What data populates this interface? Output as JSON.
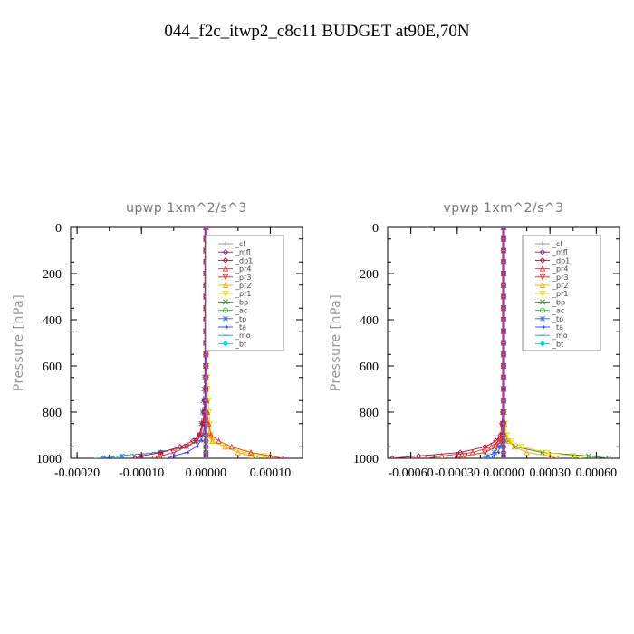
{
  "figure": {
    "title": "044_f2c_itwp2_c8c11  BUDGET at90E,70N"
  },
  "chart_data": [
    {
      "type": "line",
      "title": "upwp   1xm^2/s^3",
      "ylabel": "Pressure [hPa]",
      "xlabel": "",
      "xlim": [
        -0.00021,
        0.00015
      ],
      "ylim": [
        1000,
        0
      ],
      "xticks": [
        -0.0002,
        -0.0001,
        0.0,
        0.0001
      ],
      "xtick_labels": [
        "-0.00020",
        "-0.00010",
        "0.00000",
        "0.00010"
      ],
      "yticks": [
        0,
        200,
        400,
        600,
        800,
        1000
      ],
      "ytick_labels": [
        "0",
        "200",
        "400",
        "600",
        "800",
        "1000"
      ],
      "legend_position": "top-right",
      "levels": [
        0,
        50,
        100,
        150,
        200,
        250,
        300,
        350,
        400,
        450,
        500,
        550,
        600,
        650,
        700,
        750,
        800,
        850,
        900,
        925,
        950,
        975,
        990,
        1000
      ],
      "series": [
        {
          "name": "_cl",
          "color": "#9a7fb0",
          "marker": "cross",
          "values": [
            0,
            0,
            0,
            0,
            0,
            0,
            0,
            0,
            0,
            0,
            0,
            0,
            0,
            0,
            0,
            0,
            0,
            0,
            0,
            0,
            0,
            0,
            0,
            0
          ]
        },
        {
          "name": "_mfl",
          "color": "#8b1a8b",
          "marker": "diamond",
          "values": [
            0,
            0,
            0,
            0,
            0,
            0,
            0,
            0,
            0,
            0,
            0,
            0,
            0,
            0,
            0,
            0,
            0,
            0,
            0,
            0,
            0,
            0,
            0,
            0
          ]
        },
        {
          "name": "_dp1",
          "color": "#b0103a",
          "marker": "diamond",
          "values": [
            0,
            0,
            0,
            0,
            0,
            0,
            0,
            0,
            0,
            0,
            0,
            0,
            0,
            0,
            0,
            -2e-06,
            -3e-06,
            -5e-06,
            -1e-05,
            -2e-05,
            -4e-05,
            -7e-05,
            -0.0001,
            -0.00011
          ]
        },
        {
          "name": "_pr4",
          "color": "#e8402a",
          "marker": "triangle-up",
          "values": [
            0,
            0,
            0,
            0,
            0,
            0,
            0,
            0,
            0,
            0,
            0,
            0,
            0,
            0,
            0,
            1e-06,
            2e-06,
            4e-06,
            8e-06,
            2e-05,
            4e-05,
            7e-05,
            0.0001,
            0.00012
          ]
        },
        {
          "name": "_pr3",
          "color": "#ff1a1a",
          "marker": "triangle-down",
          "values": [
            0,
            0,
            0,
            0,
            0,
            0,
            0,
            0,
            0,
            0,
            0,
            0,
            0,
            0,
            0,
            -1e-06,
            -2e-06,
            -4e-06,
            -8e-06,
            -1.5e-05,
            -3e-05,
            -5e-05,
            -7e-05,
            -8e-05
          ]
        },
        {
          "name": "_pr2",
          "color": "#ffa500",
          "marker": "triangle-up",
          "values": [
            0,
            0,
            0,
            0,
            0,
            0,
            0,
            0,
            0,
            0,
            0,
            0,
            0,
            0,
            0,
            1e-06,
            2e-06,
            3e-06,
            5e-06,
            1e-05,
            3e-05,
            5e-05,
            7e-05,
            8e-05
          ]
        },
        {
          "name": "_pr1",
          "color": "#e8e000",
          "marker": "triangle-down",
          "values": [
            0,
            0,
            0,
            0,
            0,
            0,
            0,
            0,
            0,
            0,
            0,
            0,
            1e-06,
            2e-06,
            3e-06,
            4e-06,
            5e-06,
            6e-06,
            8e-06,
            1e-05,
            3e-05,
            6e-05,
            9e-05,
            0.0001
          ]
        },
        {
          "name": "_bp",
          "color": "#228b22",
          "marker": "x",
          "values": [
            0,
            0,
            0,
            0,
            0,
            0,
            0,
            0,
            0,
            0,
            0,
            0,
            0,
            0,
            0,
            0,
            0,
            0,
            0,
            0,
            0,
            0,
            0,
            0
          ]
        },
        {
          "name": "_ac",
          "color": "#33cc33",
          "marker": "circle",
          "values": [
            0,
            0,
            0,
            0,
            0,
            0,
            0,
            0,
            0,
            0,
            0,
            0,
            0,
            0,
            0,
            0,
            0,
            0,
            0,
            0,
            0,
            0,
            0,
            0
          ]
        },
        {
          "name": "_tp",
          "color": "#1e6fd0",
          "marker": "asterisk",
          "values": [
            0,
            0,
            0,
            0,
            0,
            0,
            0,
            0,
            0,
            0,
            0,
            0,
            -1e-06,
            -2e-06,
            -3e-06,
            -4e-06,
            -5e-06,
            -7e-06,
            -1e-05,
            -1.5e-05,
            -3e-05,
            -7e-05,
            -0.00013,
            -0.00016
          ]
        },
        {
          "name": "_ta",
          "color": "#3a3aff",
          "marker": "arrow",
          "values": [
            0,
            0,
            0,
            0,
            0,
            0,
            0,
            0,
            0,
            0,
            0,
            0,
            0,
            0,
            0,
            0,
            -1e-06,
            -2e-06,
            -4e-06,
            -8e-06,
            -1.5e-05,
            -3e-05,
            -5e-05,
            -6e-05
          ]
        },
        {
          "name": "_mo",
          "color": "#1ea0c8",
          "marker": "dash",
          "values": [
            0,
            0,
            0,
            0,
            0,
            0,
            0,
            0,
            0,
            0,
            0,
            0,
            0,
            0,
            0,
            0,
            -1e-06,
            -2e-06,
            -5e-06,
            -1e-05,
            -3e-05,
            -8e-05,
            -0.00014,
            -0.00017
          ]
        },
        {
          "name": "_bt",
          "color": "#00d8e8",
          "marker": "diamond-filled",
          "values": [
            0,
            0,
            0,
            0,
            0,
            0,
            0,
            0,
            0,
            0,
            0,
            0,
            0,
            0,
            0,
            0,
            0,
            0,
            0,
            0,
            0,
            0,
            0,
            0
          ]
        }
      ]
    },
    {
      "type": "line",
      "title": "vpwp   1xm^2/s^3",
      "ylabel": "Pressure [hPa]",
      "xlabel": "",
      "xlim": [
        -0.00075,
        0.00075
      ],
      "ylim": [
        1000,
        0
      ],
      "xticks": [
        -0.0006,
        -0.0003,
        0.0,
        0.0003,
        0.0006
      ],
      "xtick_labels": [
        "-0.00060",
        "-0.00030",
        "0.00000",
        "0.00030",
        "0.00060"
      ],
      "yticks": [
        0,
        200,
        400,
        600,
        800,
        1000
      ],
      "ytick_labels": [
        "0",
        "200",
        "400",
        "600",
        "800",
        "1000"
      ],
      "legend_position": "top-right",
      "levels": [
        0,
        50,
        100,
        150,
        200,
        250,
        300,
        350,
        400,
        450,
        500,
        550,
        600,
        650,
        700,
        750,
        800,
        850,
        900,
        925,
        950,
        975,
        990,
        1000
      ],
      "series": [
        {
          "name": "_cl",
          "color": "#9a7fb0",
          "marker": "cross",
          "values": [
            0,
            0,
            0,
            0,
            0,
            0,
            0,
            0,
            0,
            0,
            0,
            0,
            0,
            0,
            0,
            0,
            0,
            0,
            0,
            0,
            0,
            0,
            0,
            0
          ]
        },
        {
          "name": "_mfl",
          "color": "#8b1a8b",
          "marker": "diamond",
          "values": [
            0,
            0,
            0,
            0,
            0,
            0,
            0,
            0,
            0,
            0,
            0,
            0,
            0,
            0,
            0,
            0,
            0,
            0,
            0,
            0,
            0,
            0,
            0,
            0
          ]
        },
        {
          "name": "_dp1",
          "color": "#b0103a",
          "marker": "diamond",
          "values": [
            0,
            0,
            0,
            0,
            0,
            0,
            0,
            0,
            0,
            0,
            0,
            0,
            0,
            0,
            0,
            0,
            -5e-06,
            -1e-05,
            -2e-05,
            -5e-05,
            -0.00012,
            -0.00028,
            -0.00055,
            -0.00072
          ]
        },
        {
          "name": "_pr4",
          "color": "#e8402a",
          "marker": "triangle-up",
          "values": [
            0,
            0,
            0,
            0,
            0,
            0,
            0,
            0,
            0,
            0,
            0,
            0,
            0,
            0,
            0,
            0,
            -3e-06,
            -6e-06,
            -1e-05,
            -3e-05,
            -8e-05,
            -0.0002,
            -0.0004,
            -0.0005
          ]
        },
        {
          "name": "_pr3",
          "color": "#ff1a1a",
          "marker": "triangle-down",
          "values": [
            0,
            0,
            0,
            0,
            0,
            0,
            0,
            0,
            0,
            0,
            0,
            0,
            0,
            0,
            0,
            0,
            -2e-06,
            -4e-06,
            -8e-06,
            -2e-05,
            -5e-05,
            -0.00012,
            -0.00025,
            -0.0003
          ]
        },
        {
          "name": "_pr2",
          "color": "#ffa500",
          "marker": "triangle-up",
          "values": [
            0,
            0,
            0,
            0,
            0,
            0,
            0,
            0,
            0,
            0,
            0,
            0,
            0,
            0,
            0,
            0,
            3e-06,
            6e-06,
            1e-05,
            3e-05,
            7e-05,
            0.00015,
            0.0003,
            0.00035
          ]
        },
        {
          "name": "_pr1",
          "color": "#e8e000",
          "marker": "triangle-down",
          "values": [
            0,
            0,
            0,
            0,
            0,
            0,
            0,
            0,
            0,
            0,
            0,
            0,
            0,
            0,
            0,
            0,
            5e-06,
            1e-05,
            2e-05,
            5e-05,
            0.00012,
            0.00028,
            0.00045,
            0.0005
          ]
        },
        {
          "name": "_bp",
          "color": "#228b22",
          "marker": "x",
          "values": [
            0,
            0,
            0,
            0,
            0,
            0,
            0,
            0,
            0,
            0,
            0,
            0,
            0,
            0,
            0,
            0,
            2e-06,
            5e-06,
            1e-05,
            3e-05,
            8e-05,
            0.00025,
            0.00055,
            0.00068
          ]
        },
        {
          "name": "_ac",
          "color": "#33cc33",
          "marker": "circle",
          "values": [
            0,
            0,
            0,
            0,
            0,
            0,
            0,
            0,
            0,
            0,
            0,
            0,
            0,
            0,
            0,
            0,
            0,
            0,
            0,
            0,
            0,
            0,
            0,
            0
          ]
        },
        {
          "name": "_tp",
          "color": "#1e6fd0",
          "marker": "asterisk",
          "values": [
            0,
            0,
            0,
            0,
            0,
            0,
            0,
            0,
            0,
            0,
            0,
            0,
            0,
            0,
            0,
            0,
            -2e-06,
            -3e-06,
            -5e-06,
            -1e-05,
            -3e-05,
            -6e-05,
            -0.0001,
            -0.00012
          ]
        },
        {
          "name": "_ta",
          "color": "#3a3aff",
          "marker": "arrow",
          "values": [
            0,
            0,
            0,
            0,
            0,
            0,
            0,
            0,
            0,
            0,
            0,
            0,
            0,
            0,
            0,
            0,
            -1e-06,
            -2e-06,
            -4e-06,
            -8e-06,
            -2e-05,
            -4e-05,
            -7e-05,
            -8e-05
          ]
        },
        {
          "name": "_mo",
          "color": "#1ea0c8",
          "marker": "dash",
          "values": [
            0,
            0,
            0,
            0,
            0,
            0,
            0,
            0,
            0,
            0,
            0,
            0,
            0,
            0,
            0,
            0,
            0,
            0,
            0,
            0,
            0,
            0,
            0,
            0
          ]
        },
        {
          "name": "_bt",
          "color": "#00d8e8",
          "marker": "diamond-filled",
          "values": [
            0,
            0,
            0,
            0,
            0,
            0,
            0,
            0,
            0,
            0,
            0,
            0,
            0,
            0,
            0,
            0,
            0,
            0,
            0,
            0,
            0,
            0,
            0,
            0
          ]
        }
      ]
    }
  ]
}
